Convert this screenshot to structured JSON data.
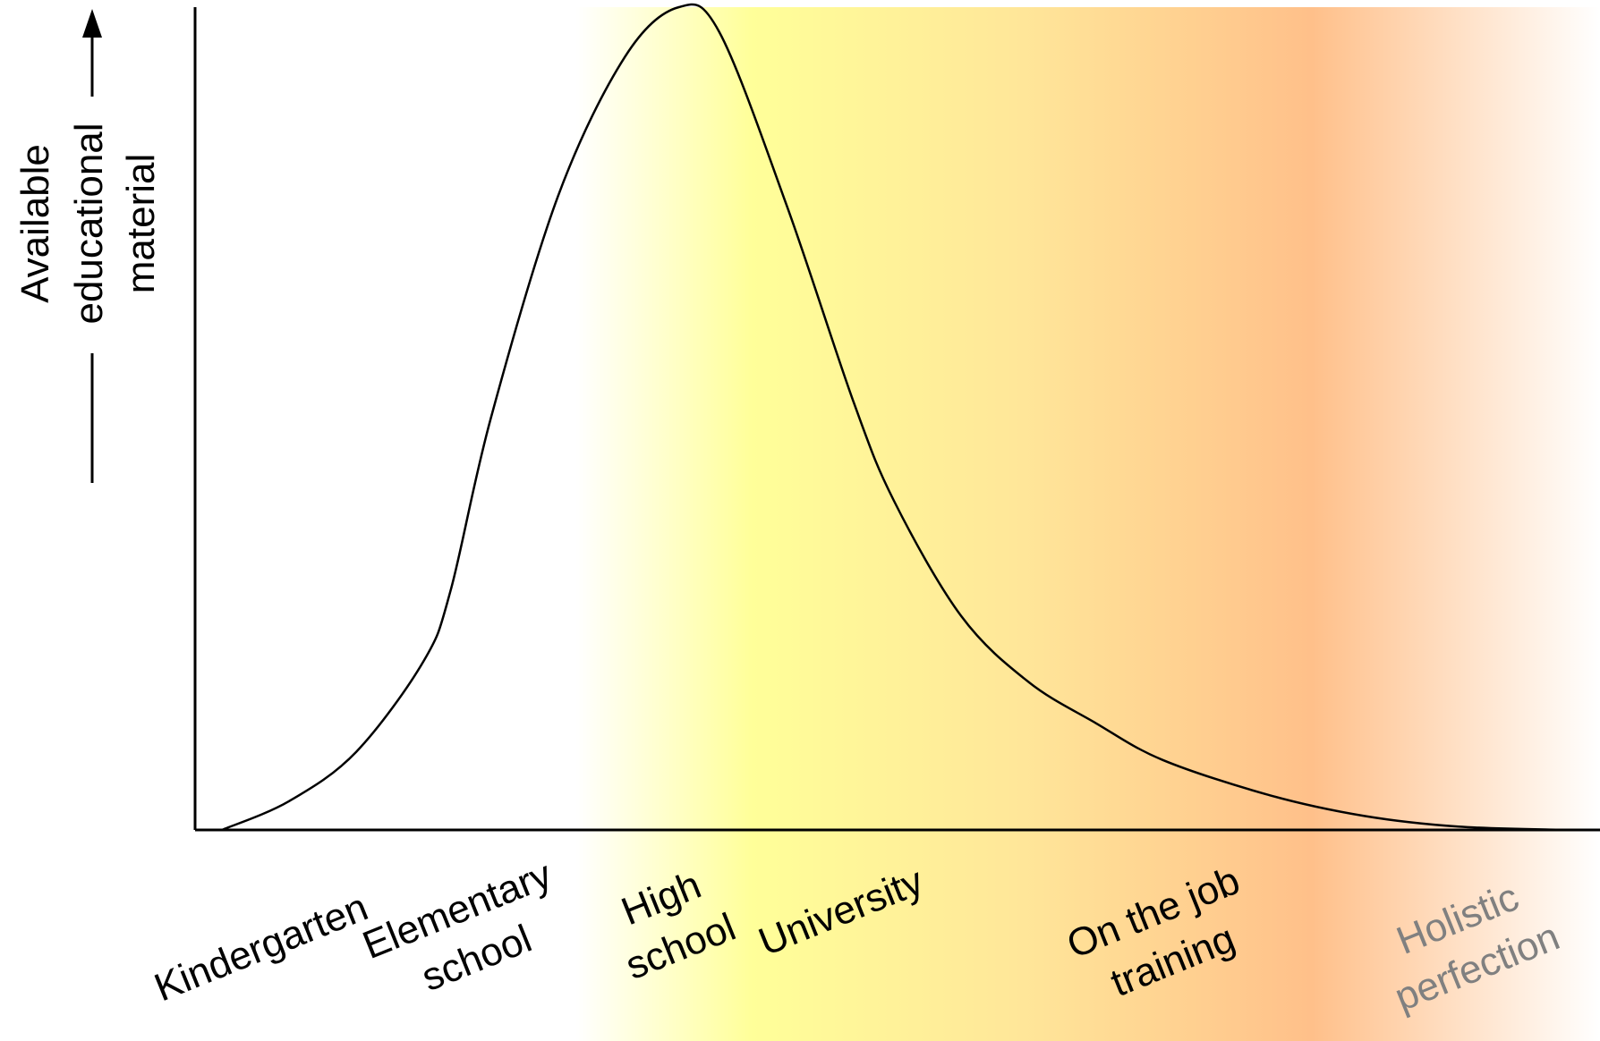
{
  "chart_data": {
    "type": "line",
    "title": "",
    "xlabel": "",
    "ylabel": "Available educational material",
    "ylabel_lines": [
      "Available",
      "educational",
      "material"
    ],
    "x_axis_ticks": "none",
    "y_axis_ticks": "none",
    "grid": false,
    "legend": "none",
    "categories": [
      {
        "lines": [
          "Kindergarten"
        ],
        "color": "#000000"
      },
      {
        "lines": [
          "Elementary",
          "school"
        ],
        "color": "#000000"
      },
      {
        "lines": [
          "High",
          "school"
        ],
        "color": "#000000"
      },
      {
        "lines": [
          "University"
        ],
        "color": "#000000"
      },
      {
        "lines": [
          "On the job",
          "training"
        ],
        "color": "#000000"
      },
      {
        "lines": [
          "Holistic",
          "perfection"
        ],
        "color": "#808080"
      }
    ],
    "curve": {
      "shape": "right-skewed peak rising from zero, peaking in the High school range, decaying toward zero at Holistic perfection",
      "x_relative": [
        0.0,
        0.05,
        0.1,
        0.15,
        0.17,
        0.2,
        0.25,
        0.3,
        0.34,
        0.37,
        0.42,
        0.47,
        0.5,
        0.55,
        0.6,
        0.65,
        0.7,
        0.78,
        0.85,
        0.92,
        1.0
      ],
      "y_relative": [
        0.0,
        0.035,
        0.095,
        0.205,
        0.29,
        0.5,
        0.77,
        0.94,
        1.0,
        0.97,
        0.76,
        0.52,
        0.4,
        0.26,
        0.18,
        0.13,
        0.085,
        0.042,
        0.017,
        0.004,
        0.0
      ]
    },
    "background_gradient": [
      {
        "stop": 0.0,
        "color": "#ffffff"
      },
      {
        "stop": 0.36,
        "color": "#ffffff"
      },
      {
        "stop": 0.47,
        "color": "#ffff99"
      },
      {
        "stop": 0.64,
        "color": "#ffe699"
      },
      {
        "stop": 0.82,
        "color": "#ffc08a"
      },
      {
        "stop": 1.0,
        "color": "#ffffff"
      }
    ]
  }
}
